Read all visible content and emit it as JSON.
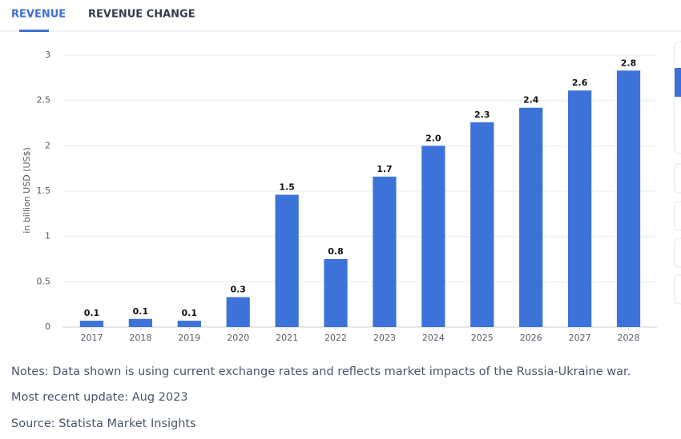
{
  "tabs": [
    "REVENUE",
    "REVENUE CHANGE"
  ],
  "chart_data": {
    "type": "bar",
    "y_label": "in billion USD (US$)",
    "categories": [
      "2017",
      "2018",
      "2019",
      "2020",
      "2021",
      "2022",
      "2023",
      "2024",
      "2025",
      "2026",
      "2027",
      "2028"
    ],
    "values": [
      0.07,
      0.09,
      0.07,
      0.33,
      1.46,
      0.75,
      1.66,
      2.0,
      2.26,
      2.42,
      2.61,
      2.83
    ],
    "value_labels": [
      "0.1",
      "0.1",
      "0.1",
      "0.3",
      "1.5",
      "0.8",
      "1.7",
      "2.0",
      "2.3",
      "2.4",
      "2.6",
      "2.8"
    ],
    "color": "#3d72d9",
    "ylim": [
      0,
      3
    ],
    "yticks": [
      0,
      0.5,
      1,
      1.5,
      2,
      2.5,
      3
    ],
    "grid": true
  },
  "notes": [
    "Notes: Data shown is using current exchange rates and reflects market impacts of the Russia-Ukraine war.",
    "Most recent update: Aug 2023",
    "Source: Statista Market Insights"
  ]
}
